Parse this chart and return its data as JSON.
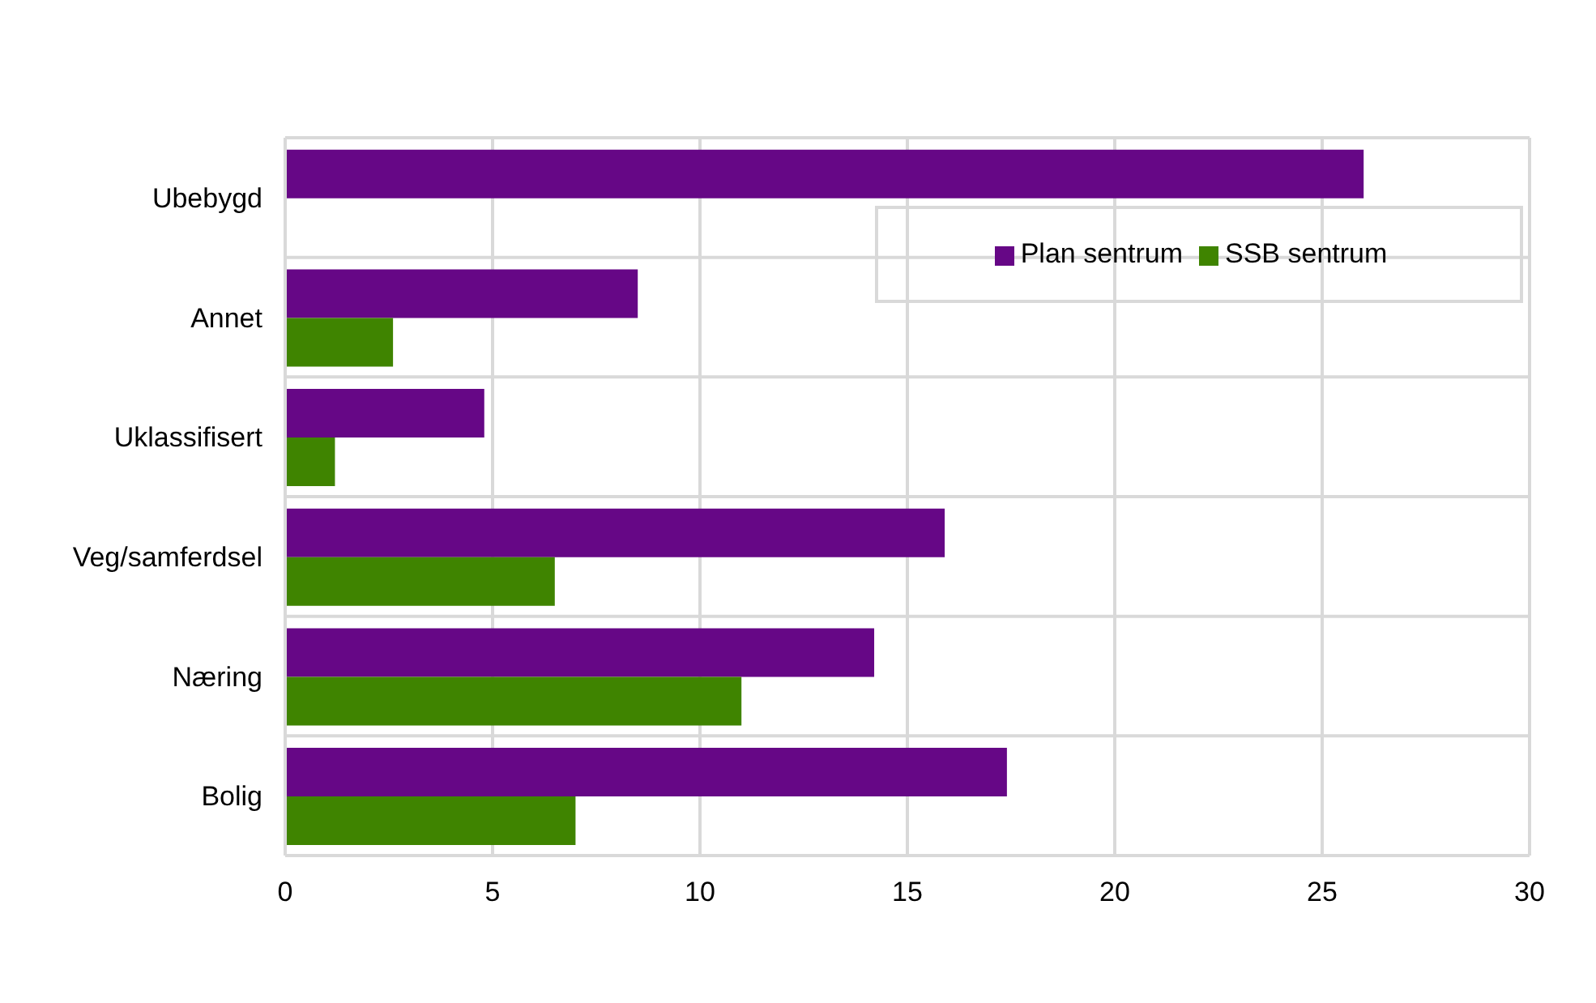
{
  "chart_data": {
    "type": "bar",
    "orientation": "horizontal",
    "categories": [
      "Ubebygd",
      "Annet",
      "Uklassifisert",
      "Veg/samferdsel",
      "Næring",
      "Bolig"
    ],
    "series": [
      {
        "name": "Plan sentrum",
        "color": "#660786",
        "values": [
          26,
          8.5,
          4.8,
          15.9,
          14.2,
          17.4
        ]
      },
      {
        "name": "SSB sentrum",
        "color": "#3f8400",
        "values": [
          null,
          2.6,
          1.2,
          6.5,
          11,
          7
        ]
      }
    ],
    "xlim": [
      0,
      30
    ],
    "xticks": [
      0,
      5,
      10,
      15,
      20,
      25,
      30
    ],
    "grid": true,
    "legend": "top right"
  }
}
